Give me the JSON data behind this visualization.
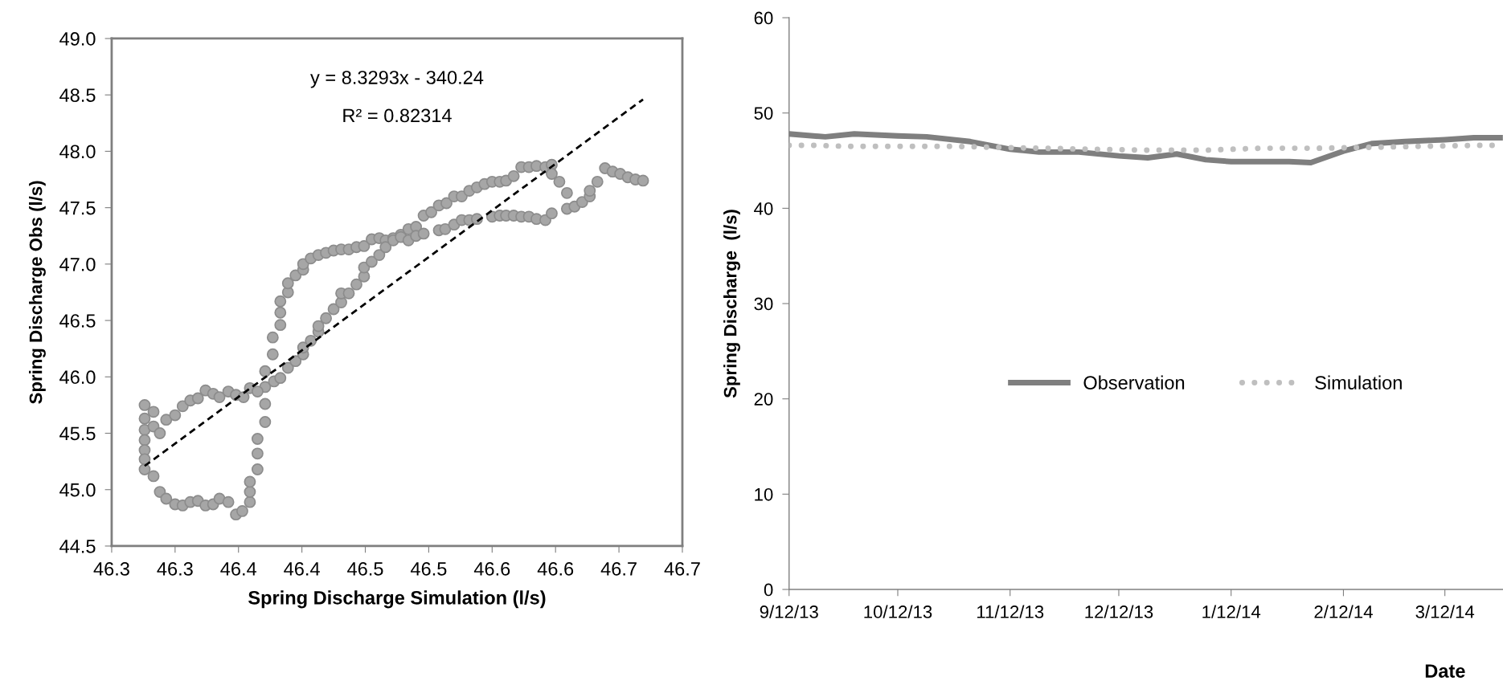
{
  "chart_data": [
    {
      "type": "scatter",
      "xlabel": "Spring Discharge Simulation (l/s)",
      "ylabel": "Spring Discharge Obs (l/s)",
      "annotations": [
        "y = 8.3293x - 340.24",
        "R² = 0.82314"
      ],
      "xlim": [
        46.25,
        46.7
      ],
      "ylim": [
        44.5,
        49.0
      ],
      "xticks": [
        {
          "value": 46.25,
          "label": "46.3"
        },
        {
          "value": 46.3,
          "label": "46.3"
        },
        {
          "value": 46.35,
          "label": "46.4"
        },
        {
          "value": 46.4,
          "label": "46.4"
        },
        {
          "value": 46.45,
          "label": "46.5"
        },
        {
          "value": 46.5,
          "label": "46.5"
        },
        {
          "value": 46.55,
          "label": "46.6"
        },
        {
          "value": 46.6,
          "label": "46.6"
        },
        {
          "value": 46.65,
          "label": "46.7"
        },
        {
          "value": 46.7,
          "label": "46.7"
        }
      ],
      "yticks": [
        44.5,
        {
          "value": 45,
          "label": "45.0"
        },
        45.5,
        {
          "value": 46,
          "label": "46.0"
        },
        46.5,
        {
          "value": 47,
          "label": "47.0"
        },
        47.5,
        {
          "value": 48,
          "label": "48.0"
        },
        48.5,
        {
          "value": 49,
          "label": "49.0"
        }
      ],
      "grid": false,
      "legend": false,
      "series": [
        {
          "type": "scatter",
          "color": "#a6a6a6",
          "marker": "circle",
          "x": [
            46.276,
            46.276,
            46.276,
            46.276,
            46.276,
            46.276,
            46.276,
            46.283,
            46.288,
            46.293,
            46.3,
            46.306,
            46.312,
            46.318,
            46.324,
            46.33,
            46.335,
            46.342,
            46.348,
            46.353,
            46.359,
            46.359,
            46.359,
            46.365,
            46.365,
            46.365,
            46.371,
            46.371,
            46.371,
            46.371,
            46.377,
            46.377,
            46.383,
            46.383,
            46.383,
            46.389,
            46.389,
            46.395,
            46.401,
            46.401,
            46.407,
            46.413,
            46.419,
            46.425,
            46.431,
            46.437,
            46.443,
            46.449,
            46.455,
            46.461,
            46.466,
            46.472,
            46.478,
            46.484,
            46.49,
            46.496,
            46.502,
            46.508,
            46.514,
            46.52,
            46.526,
            46.532,
            46.538,
            46.544,
            46.55,
            46.556,
            46.561,
            46.567,
            46.573,
            46.579,
            46.585,
            46.592,
            46.597,
            46.597,
            46.603,
            46.609,
            46.609,
            46.615,
            46.621,
            46.627,
            46.627,
            46.633,
            46.639,
            46.645,
            46.651,
            46.657,
            46.663,
            46.669,
            46.283,
            46.283,
            46.288,
            46.293,
            46.3,
            46.306,
            46.312,
            46.318,
            46.324,
            46.33,
            46.335,
            46.342,
            46.348,
            46.354,
            46.359,
            46.365,
            46.378,
            46.383,
            46.389,
            46.395,
            46.401,
            46.401,
            46.407,
            46.413,
            46.413,
            46.419,
            46.425,
            46.431,
            46.431,
            46.437,
            46.443,
            46.449,
            46.449,
            46.455,
            46.461,
            46.466,
            46.472,
            46.478,
            46.484,
            46.49,
            46.496,
            46.508,
            46.513,
            46.52,
            46.526,
            46.532,
            46.538,
            46.55,
            46.556,
            46.561,
            46.567,
            46.573,
            46.579,
            46.585,
            46.592,
            46.597
          ],
          "values": [
            45.75,
            45.63,
            45.53,
            45.44,
            45.35,
            45.27,
            45.18,
            45.12,
            44.98,
            44.92,
            44.87,
            44.86,
            44.89,
            44.9,
            44.86,
            44.87,
            44.92,
            44.89,
            44.78,
            44.81,
            44.89,
            44.98,
            45.07,
            45.18,
            45.32,
            45.45,
            45.6,
            45.76,
            45.91,
            46.05,
            46.2,
            46.35,
            46.46,
            46.57,
            46.67,
            46.75,
            46.83,
            46.9,
            46.95,
            47.0,
            47.05,
            47.08,
            47.1,
            47.12,
            47.13,
            47.13,
            47.15,
            47.16,
            47.22,
            47.23,
            47.21,
            47.23,
            47.26,
            47.31,
            47.33,
            47.43,
            47.46,
            47.52,
            47.54,
            47.6,
            47.6,
            47.65,
            47.68,
            47.71,
            47.73,
            47.73,
            47.74,
            47.78,
            47.86,
            47.86,
            47.87,
            47.86,
            47.88,
            47.8,
            47.73,
            47.63,
            47.49,
            47.51,
            47.55,
            47.6,
            47.65,
            47.73,
            47.85,
            47.82,
            47.8,
            47.77,
            47.75,
            47.74,
            45.69,
            45.56,
            45.5,
            45.62,
            45.66,
            45.74,
            45.79,
            45.81,
            45.88,
            45.85,
            45.82,
            45.87,
            45.84,
            45.82,
            45.9,
            45.87,
            45.96,
            45.99,
            46.08,
            46.14,
            46.2,
            46.26,
            46.32,
            46.4,
            46.45,
            46.52,
            46.6,
            46.66,
            46.74,
            46.74,
            46.82,
            46.89,
            46.97,
            47.02,
            47.08,
            47.15,
            47.21,
            47.24,
            47.21,
            47.25,
            47.27,
            47.3,
            47.31,
            47.35,
            47.39,
            47.39,
            47.4,
            47.42,
            47.43,
            47.43,
            47.43,
            47.42,
            47.42,
            47.4,
            47.39,
            47.45
          ]
        },
        {
          "type": "line",
          "color": "#000000",
          "line_style": "dashed",
          "x": [
            46.276,
            46.669
          ],
          "values": [
            45.21,
            48.46
          ]
        }
      ]
    },
    {
      "type": "line",
      "ylabel": "Spring Discharge  (l/s)",
      "xlabel": "Date",
      "xlim": [
        "2013-09-12",
        "2014-03-28"
      ],
      "ylim": [
        0,
        60
      ],
      "yticks": [
        0,
        10,
        20,
        30,
        40,
        50,
        60
      ],
      "xticks": [
        {
          "value": "2013-09-12",
          "label": "9/12/13"
        },
        {
          "value": "2013-10-12",
          "label": "10/12/13"
        },
        {
          "value": "2013-11-12",
          "label": "11/12/13"
        },
        {
          "value": "2013-12-12",
          "label": "12/12/13"
        },
        {
          "value": "2014-01-12",
          "label": "1/12/14"
        },
        {
          "value": "2014-02-12",
          "label": "2/12/14"
        },
        {
          "value": "2014-03-12",
          "label": "3/12/14"
        }
      ],
      "grid": false,
      "legend": "center",
      "series": [
        {
          "name": "Observation",
          "color": "#7f7f7f",
          "line_style": "solid",
          "x": [
            "2013-09-12",
            "2013-09-22",
            "2013-09-30",
            "2013-10-12",
            "2013-10-20",
            "2013-11-01",
            "2013-11-12",
            "2013-11-20",
            "2013-12-01",
            "2013-12-12",
            "2013-12-20",
            "2013-12-28",
            "2014-01-05",
            "2014-01-12",
            "2014-01-28",
            "2014-02-03",
            "2014-02-12",
            "2014-02-20",
            "2014-03-01",
            "2014-03-12",
            "2014-03-20",
            "2014-03-28"
          ],
          "values": [
            47.8,
            47.5,
            47.8,
            47.6,
            47.5,
            47.0,
            46.2,
            45.9,
            45.9,
            45.5,
            45.3,
            45.7,
            45.1,
            44.9,
            44.9,
            44.8,
            46.0,
            46.8,
            47.0,
            47.2,
            47.4,
            47.4
          ]
        },
        {
          "name": "Simulation",
          "color": "#bfbfbf",
          "line_style": "dotted",
          "x": [
            "2013-09-12",
            "2013-09-20",
            "2013-09-28",
            "2013-10-12",
            "2013-10-28",
            "2013-11-08",
            "2013-11-20",
            "2013-12-05",
            "2013-12-20",
            "2014-01-05",
            "2014-01-20",
            "2014-02-05",
            "2014-02-20",
            "2014-03-05",
            "2014-03-20",
            "2014-03-28"
          ],
          "values": [
            46.6,
            46.6,
            46.5,
            46.5,
            46.5,
            46.4,
            46.3,
            46.2,
            46.1,
            46.1,
            46.3,
            46.3,
            46.4,
            46.5,
            46.6,
            46.6
          ]
        }
      ]
    }
  ]
}
